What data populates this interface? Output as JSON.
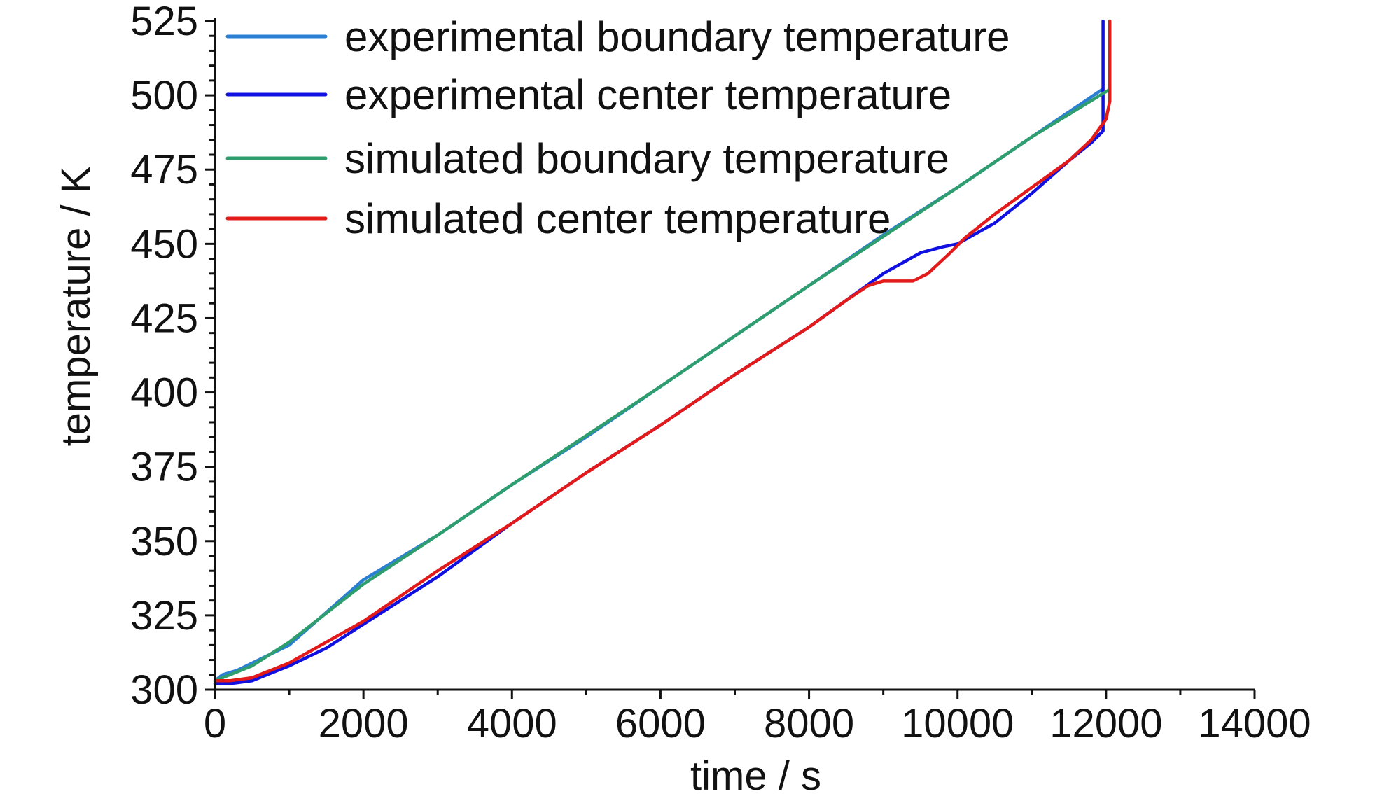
{
  "chart_data": {
    "type": "line",
    "title": "",
    "xlabel": "time / s",
    "ylabel": "temperature / K",
    "xlim": [
      0,
      14000
    ],
    "ylim": [
      300,
      525
    ],
    "x_ticks": [
      0,
      2000,
      4000,
      6000,
      8000,
      10000,
      12000,
      14000
    ],
    "y_ticks": [
      300,
      325,
      350,
      375,
      400,
      425,
      450,
      475,
      500,
      525
    ],
    "grid": false,
    "legend_position": "top-left",
    "series": [
      {
        "name": "experimental boundary temperature",
        "color": "#2B7FD4",
        "points": [
          [
            0,
            303
          ],
          [
            100,
            305
          ],
          [
            300,
            306.5
          ],
          [
            1000,
            315
          ],
          [
            2000,
            337
          ],
          [
            3000,
            352
          ],
          [
            4000,
            369
          ],
          [
            5000,
            385
          ],
          [
            6000,
            402
          ],
          [
            7000,
            419
          ],
          [
            8000,
            436
          ],
          [
            9000,
            453
          ],
          [
            10000,
            469
          ],
          [
            11000,
            486
          ],
          [
            11950,
            502
          ]
        ]
      },
      {
        "name": "experimental center temperature",
        "color": "#1010E0",
        "points": [
          [
            0,
            302
          ],
          [
            200,
            302
          ],
          [
            500,
            303
          ],
          [
            1000,
            308
          ],
          [
            1500,
            314
          ],
          [
            2000,
            322
          ],
          [
            3000,
            338
          ],
          [
            4000,
            356
          ],
          [
            5000,
            373
          ],
          [
            6000,
            389
          ],
          [
            7000,
            406
          ],
          [
            8000,
            422
          ],
          [
            8500,
            431
          ],
          [
            9000,
            440
          ],
          [
            9500,
            447
          ],
          [
            9800,
            449
          ],
          [
            10000,
            450
          ],
          [
            10500,
            457
          ],
          [
            11000,
            467
          ],
          [
            11500,
            478
          ],
          [
            11800,
            484
          ],
          [
            11960,
            488
          ],
          [
            11960,
            525
          ]
        ]
      },
      {
        "name": "simulated boundary temperature",
        "color": "#2E9E6E",
        "points": [
          [
            0,
            303
          ],
          [
            500,
            308
          ],
          [
            1000,
            316
          ],
          [
            2000,
            335.5
          ],
          [
            3000,
            352
          ],
          [
            4000,
            369
          ],
          [
            5000,
            385.5
          ],
          [
            6000,
            402
          ],
          [
            7000,
            419
          ],
          [
            8000,
            436
          ],
          [
            9000,
            452.5
          ],
          [
            10000,
            469
          ],
          [
            11000,
            486
          ],
          [
            12050,
            502
          ]
        ]
      },
      {
        "name": "simulated center temperature",
        "color": "#E21A1A",
        "points": [
          [
            0,
            303
          ],
          [
            200,
            303
          ],
          [
            500,
            304
          ],
          [
            1000,
            309
          ],
          [
            1500,
            316
          ],
          [
            2000,
            323
          ],
          [
            3000,
            340
          ],
          [
            4000,
            356
          ],
          [
            5000,
            373
          ],
          [
            6000,
            389
          ],
          [
            7000,
            406
          ],
          [
            8000,
            422
          ],
          [
            8500,
            431
          ],
          [
            8800,
            436
          ],
          [
            9000,
            437.5
          ],
          [
            9400,
            437.5
          ],
          [
            9600,
            440
          ],
          [
            9900,
            447
          ],
          [
            10100,
            452
          ],
          [
            10500,
            460
          ],
          [
            11000,
            469
          ],
          [
            11500,
            478
          ],
          [
            11800,
            485
          ],
          [
            12000,
            492
          ],
          [
            12050,
            498
          ],
          [
            12050,
            525
          ]
        ]
      }
    ]
  }
}
